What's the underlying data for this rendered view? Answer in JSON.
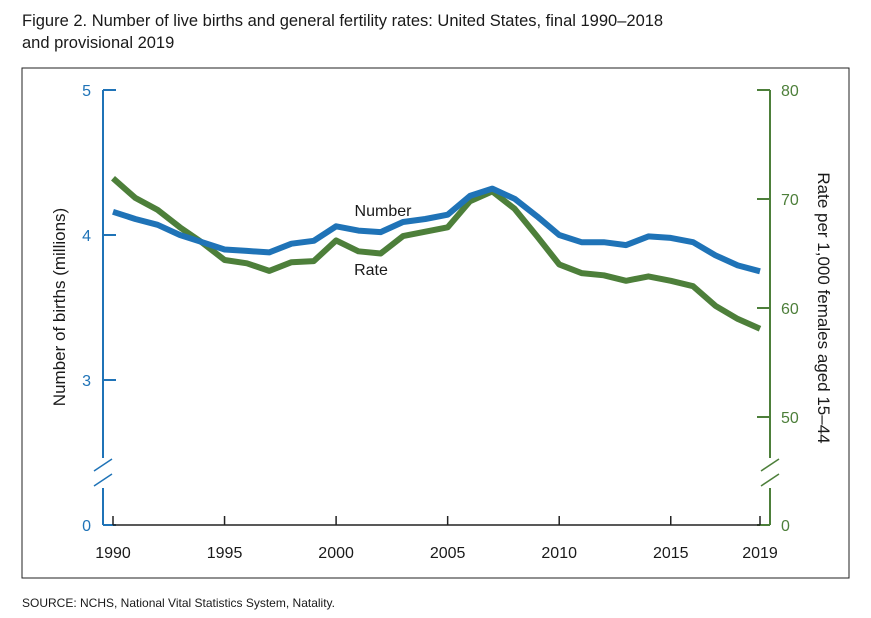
{
  "title_lines": [
    "Figure 2. Number of live births and general fertility rates: United States, final 1990–2018",
    "and provisional 2019"
  ],
  "source": "SOURCE: NCHS, National Vital Statistics System, Natality.",
  "colors": {
    "number": "#1f73b7",
    "rate": "#4d7f3a",
    "frame": "#222222"
  },
  "chart_data": {
    "type": "line",
    "x": [
      1990,
      1991,
      1992,
      1993,
      1994,
      1995,
      1996,
      1997,
      1998,
      1999,
      2000,
      2001,
      2002,
      2003,
      2004,
      2005,
      2006,
      2007,
      2008,
      2009,
      2010,
      2011,
      2012,
      2013,
      2014,
      2015,
      2016,
      2017,
      2018,
      2019
    ],
    "x_ticks": [
      1990,
      1995,
      2000,
      2005,
      2010,
      2015,
      2019
    ],
    "left_axis": {
      "label": "Number of births (millions)",
      "ticks": [
        0,
        3,
        4,
        5
      ],
      "range": [
        2.5,
        5
      ],
      "broken": true,
      "color": "#1f73b7"
    },
    "right_axis": {
      "label": "Rate per 1,000 females aged 15–44",
      "ticks": [
        0,
        50,
        60,
        70,
        80
      ],
      "range": [
        40,
        80
      ],
      "broken": true,
      "color": "#4d7f3a"
    },
    "series": [
      {
        "name": "Number",
        "axis": "left",
        "values": [
          4.16,
          4.11,
          4.07,
          4.0,
          3.95,
          3.9,
          3.89,
          3.88,
          3.94,
          3.96,
          4.06,
          4.03,
          4.02,
          4.09,
          4.11,
          4.14,
          4.27,
          4.32,
          4.25,
          4.13,
          4.0,
          3.95,
          3.95,
          3.93,
          3.99,
          3.98,
          3.95,
          3.86,
          3.79,
          3.75
        ]
      },
      {
        "name": "Rate",
        "axis": "right",
        "values": [
          71.9,
          70.1,
          69.0,
          67.4,
          66.0,
          64.4,
          64.1,
          63.4,
          64.2,
          64.3,
          66.2,
          65.2,
          65.0,
          66.6,
          67.0,
          67.4,
          69.8,
          70.7,
          69.1,
          66.6,
          64.0,
          63.2,
          63.0,
          62.5,
          62.9,
          62.5,
          62.0,
          60.2,
          59.0,
          58.1
        ]
      }
    ]
  }
}
